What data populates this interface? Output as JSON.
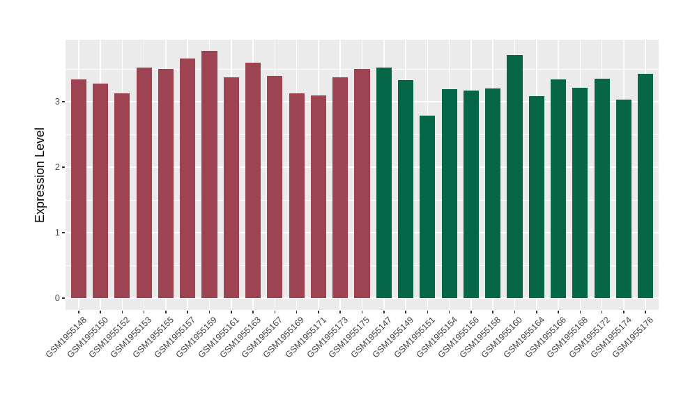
{
  "chart_data": {
    "type": "bar",
    "title": "",
    "xlabel": "",
    "ylabel": "Expression Level",
    "legend": "none",
    "grid": "on",
    "panel_background": "#EBEBEB",
    "gridline_color": "#FFFFFF",
    "tick_color": "#333333",
    "axis_text_color": "#404040",
    "yticks": [
      0,
      1,
      2,
      3
    ],
    "y_minor_ticks": [
      0.5,
      1.5,
      2.5,
      3.5
    ],
    "ylim": [
      -0.18,
      3.95
    ],
    "categories": [
      "GSM1955148",
      "GSM1955150",
      "GSM1955152",
      "GSM1955153",
      "GSM1955155",
      "GSM1955157",
      "GSM1955159",
      "GSM1955161",
      "GSM1955163",
      "GSM1955167",
      "GSM1955169",
      "GSM1955171",
      "GSM1955173",
      "GSM1955175",
      "GSM1955147",
      "GSM1955149",
      "GSM1955151",
      "GSM1955154",
      "GSM1955156",
      "GSM1955158",
      "GSM1955160",
      "GSM1955164",
      "GSM1955166",
      "GSM1955168",
      "GSM1955172",
      "GSM1955174",
      "GSM1955176"
    ],
    "values": [
      3.34,
      3.28,
      3.13,
      3.52,
      3.5,
      3.66,
      3.78,
      3.37,
      3.6,
      3.39,
      3.13,
      3.1,
      3.37,
      3.5,
      3.52,
      3.33,
      2.79,
      3.19,
      3.17,
      3.2,
      3.71,
      3.08,
      3.34,
      3.21,
      3.35,
      3.03,
      3.43
    ],
    "bar_groups": [
      "group1",
      "group1",
      "group1",
      "group1",
      "group1",
      "group1",
      "group1",
      "group1",
      "group1",
      "group1",
      "group1",
      "group1",
      "group1",
      "group1",
      "group2",
      "group2",
      "group2",
      "group2",
      "group2",
      "group2",
      "group2",
      "group2",
      "group2",
      "group2",
      "group2",
      "group2",
      "group2"
    ],
    "group_colors": {
      "group1": "#9D4351",
      "group2": "#066748"
    }
  }
}
